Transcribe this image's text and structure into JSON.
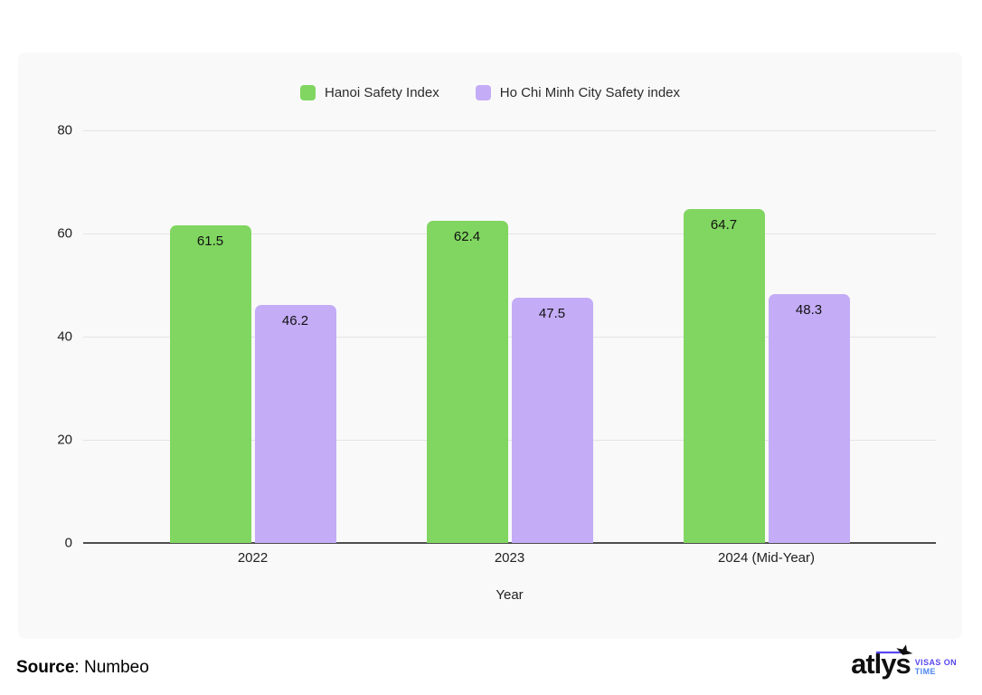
{
  "chart_data": {
    "type": "bar",
    "categories": [
      "2022",
      "2023",
      "2024 (Mid-Year)"
    ],
    "series": [
      {
        "name": "Hanoi Safety Index",
        "color": "#81d661",
        "values": [
          61.5,
          62.4,
          64.7
        ]
      },
      {
        "name": "Ho Chi Minh City Safety index",
        "color": "#c4acf6",
        "values": [
          46.2,
          47.5,
          48.3
        ]
      }
    ],
    "title": "",
    "xlabel": "Year",
    "ylabel": "",
    "ylim": [
      0,
      80
    ],
    "yticks": [
      0,
      20,
      40,
      60,
      80
    ],
    "grid": true,
    "legend_position": "top",
    "value_label_format": "one-decimal",
    "value_label_position": "inside-top"
  },
  "colors": {
    "card_background": "#f9f9f9",
    "page_background": "#ffffff",
    "gridline": "#e4e4e4",
    "axis_line": "#4d4d4d",
    "text": "#212121"
  },
  "footer": {
    "source_label": "Source",
    "source_value": ": Numbeo",
    "logo": {
      "brand": "atlys",
      "tagline_line1": "VISAS ON",
      "tagline_line2": "TIME"
    }
  }
}
